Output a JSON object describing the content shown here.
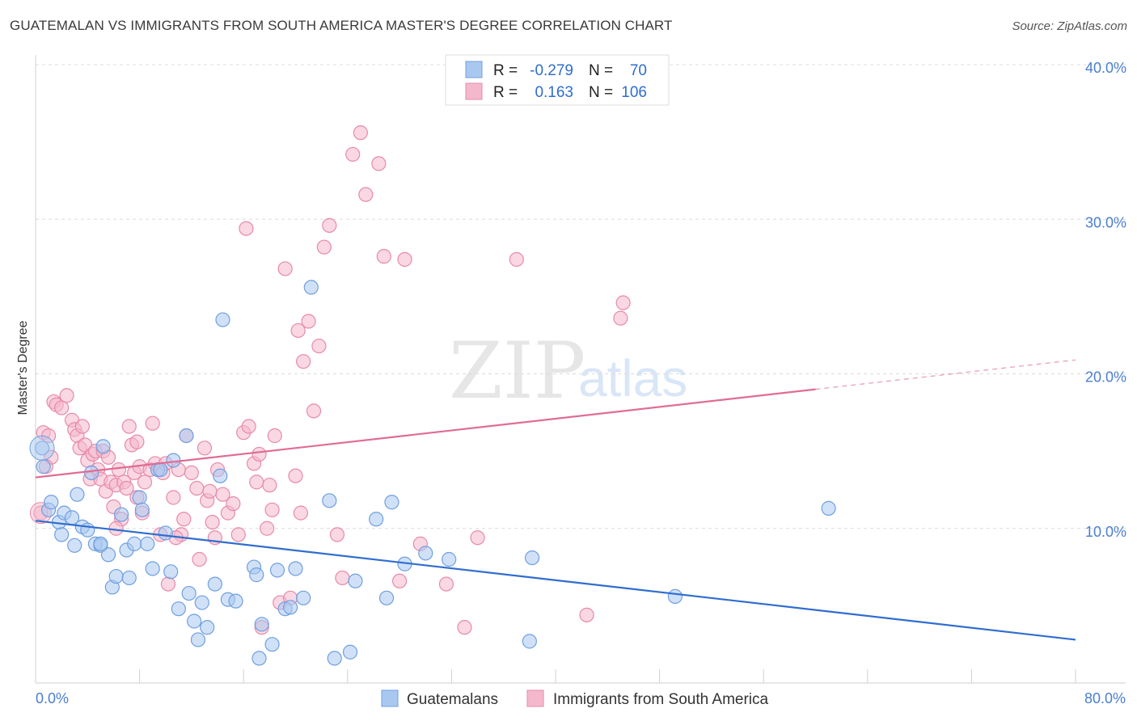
{
  "header": {
    "title": "GUATEMALAN VS IMMIGRANTS FROM SOUTH AMERICA MASTER'S DEGREE CORRELATION CHART",
    "source": "Source: ZipAtlas.com"
  },
  "legend_box": {
    "rows": [
      {
        "r_label": "R = ",
        "r_value": "-0.279",
        "n_label": "N = ",
        "n_value": "70",
        "color": "#a9c8f0"
      },
      {
        "r_label": "R = ",
        "r_value": "0.163",
        "n_label": "N = ",
        "n_value": "106",
        "color": "#f4b8cc"
      }
    ]
  },
  "bottom_legend": {
    "items": [
      {
        "label": "Guatemalans",
        "color": "#a9c8f0"
      },
      {
        "label": "Immigrants from South America",
        "color": "#f4b8cc"
      }
    ]
  },
  "watermark": {
    "zip": "ZIP",
    "atlas": "atlas"
  },
  "chart_data": {
    "type": "scatter",
    "ylabel": "Master's Degree",
    "xlabel": "",
    "xlim": [
      0,
      80
    ],
    "ylim": [
      0,
      40
    ],
    "x_tick_labels": {
      "min": "0.0%",
      "max": "80.0%"
    },
    "y_ticks": [
      10,
      20,
      30,
      40
    ],
    "y_tick_labels": [
      "10.0%",
      "20.0%",
      "30.0%",
      "40.0%"
    ],
    "grid": true,
    "legend_position": "top-center",
    "series": [
      {
        "name": "Guatemalans",
        "color": "#a9c8f0",
        "stroke": "#6f9fe0",
        "trend_color": "#2f6dcf",
        "trend": {
          "x0": 0,
          "y0": 10.5,
          "x1": 80,
          "y1": 2.8
        },
        "points": [
          [
            0.5,
            15.2
          ],
          [
            0.6,
            14.0
          ],
          [
            1.0,
            11.2
          ],
          [
            1.2,
            11.7
          ],
          [
            1.8,
            10.4
          ],
          [
            2.0,
            9.6
          ],
          [
            2.2,
            11.0
          ],
          [
            2.8,
            10.7
          ],
          [
            3.0,
            8.9
          ],
          [
            3.2,
            12.2
          ],
          [
            3.6,
            10.1
          ],
          [
            4.0,
            9.9
          ],
          [
            4.3,
            13.6
          ],
          [
            4.6,
            9.0
          ],
          [
            5.0,
            8.9
          ],
          [
            5.2,
            15.3
          ],
          [
            5.6,
            8.3
          ],
          [
            5.9,
            6.2
          ],
          [
            6.2,
            6.9
          ],
          [
            6.6,
            10.9
          ],
          [
            7.0,
            8.6
          ],
          [
            7.2,
            6.8
          ],
          [
            7.6,
            9.0
          ],
          [
            8.0,
            12.0
          ],
          [
            8.2,
            11.2
          ],
          [
            8.6,
            9.0
          ],
          [
            9.0,
            7.4
          ],
          [
            9.4,
            13.8
          ],
          [
            10.0,
            9.7
          ],
          [
            10.4,
            7.2
          ],
          [
            10.6,
            14.4
          ],
          [
            11.0,
            4.8
          ],
          [
            11.6,
            16.0
          ],
          [
            11.8,
            5.8
          ],
          [
            12.2,
            4.0
          ],
          [
            12.5,
            2.8
          ],
          [
            12.8,
            5.2
          ],
          [
            13.2,
            3.6
          ],
          [
            13.8,
            6.4
          ],
          [
            14.2,
            13.4
          ],
          [
            14.4,
            23.5
          ],
          [
            14.8,
            5.4
          ],
          [
            15.4,
            5.3
          ],
          [
            16.8,
            7.5
          ],
          [
            17.0,
            7.0
          ],
          [
            17.2,
            1.6
          ],
          [
            17.4,
            3.8
          ],
          [
            18.2,
            2.5
          ],
          [
            18.6,
            7.3
          ],
          [
            19.2,
            4.8
          ],
          [
            19.6,
            4.9
          ],
          [
            20.0,
            7.4
          ],
          [
            20.6,
            5.5
          ],
          [
            21.2,
            25.6
          ],
          [
            22.6,
            11.8
          ],
          [
            23.0,
            1.6
          ],
          [
            24.2,
            2.0
          ],
          [
            24.6,
            6.6
          ],
          [
            26.2,
            10.6
          ],
          [
            27.0,
            5.5
          ],
          [
            27.4,
            11.7
          ],
          [
            28.4,
            7.7
          ],
          [
            30.0,
            8.4
          ],
          [
            31.8,
            8.0
          ],
          [
            38.0,
            2.7
          ],
          [
            38.2,
            8.1
          ],
          [
            49.2,
            5.6
          ],
          [
            61.0,
            11.3
          ],
          [
            9.6,
            13.8
          ],
          [
            5.0,
            9.0
          ]
        ]
      },
      {
        "name": "Immigrants from South America",
        "color": "#f4b8cc",
        "stroke": "#e88aa8",
        "trend_color": "#e06c94",
        "trend": {
          "x0": 0,
          "y0": 13.3,
          "x1": 60,
          "y1": 19.0
        },
        "trend_dashed": {
          "x0": 60,
          "y0": 19.0,
          "x1": 80,
          "y1": 20.9
        },
        "points": [
          [
            0.6,
            16.2
          ],
          [
            1.0,
            16.0
          ],
          [
            1.2,
            14.6
          ],
          [
            1.4,
            18.2
          ],
          [
            1.6,
            18.0
          ],
          [
            2.0,
            17.8
          ],
          [
            2.4,
            18.6
          ],
          [
            2.8,
            17.0
          ],
          [
            3.0,
            16.4
          ],
          [
            3.2,
            16.0
          ],
          [
            3.4,
            15.2
          ],
          [
            3.6,
            16.6
          ],
          [
            3.8,
            15.4
          ],
          [
            4.0,
            14.4
          ],
          [
            4.2,
            13.2
          ],
          [
            4.4,
            14.8
          ],
          [
            4.6,
            15.0
          ],
          [
            4.8,
            13.8
          ],
          [
            5.0,
            13.2
          ],
          [
            5.2,
            15.0
          ],
          [
            5.4,
            12.4
          ],
          [
            5.6,
            14.6
          ],
          [
            5.8,
            13.0
          ],
          [
            6.0,
            11.4
          ],
          [
            6.2,
            12.8
          ],
          [
            6.4,
            13.8
          ],
          [
            6.6,
            10.6
          ],
          [
            6.8,
            13.0
          ],
          [
            7.0,
            12.6
          ],
          [
            7.2,
            16.6
          ],
          [
            7.4,
            15.4
          ],
          [
            7.6,
            13.6
          ],
          [
            7.8,
            12.0
          ],
          [
            8.0,
            14.0
          ],
          [
            8.2,
            11.0
          ],
          [
            8.4,
            13.0
          ],
          [
            8.8,
            13.8
          ],
          [
            9.0,
            16.8
          ],
          [
            9.2,
            14.2
          ],
          [
            9.6,
            9.6
          ],
          [
            9.8,
            13.6
          ],
          [
            10.0,
            14.2
          ],
          [
            10.2,
            6.4
          ],
          [
            10.6,
            12.0
          ],
          [
            11.0,
            13.8
          ],
          [
            11.2,
            9.6
          ],
          [
            11.4,
            10.6
          ],
          [
            11.6,
            16.0
          ],
          [
            12.0,
            13.6
          ],
          [
            12.4,
            12.6
          ],
          [
            12.6,
            8.0
          ],
          [
            13.0,
            15.2
          ],
          [
            13.2,
            11.8
          ],
          [
            13.6,
            10.4
          ],
          [
            13.8,
            9.4
          ],
          [
            14.0,
            13.8
          ],
          [
            14.4,
            12.2
          ],
          [
            14.8,
            11.0
          ],
          [
            15.2,
            11.6
          ],
          [
            15.6,
            9.6
          ],
          [
            16.0,
            16.2
          ],
          [
            16.4,
            16.6
          ],
          [
            16.8,
            14.2
          ],
          [
            17.0,
            13.0
          ],
          [
            17.4,
            3.6
          ],
          [
            17.8,
            10.0
          ],
          [
            18.2,
            11.2
          ],
          [
            18.4,
            16.0
          ],
          [
            18.8,
            5.2
          ],
          [
            19.2,
            26.8
          ],
          [
            19.6,
            5.5
          ],
          [
            20.0,
            13.4
          ],
          [
            20.2,
            22.8
          ],
          [
            20.6,
            20.8
          ],
          [
            21.0,
            23.4
          ],
          [
            21.4,
            17.6
          ],
          [
            21.8,
            21.8
          ],
          [
            22.2,
            28.2
          ],
          [
            22.6,
            29.6
          ],
          [
            23.2,
            9.6
          ],
          [
            23.6,
            6.8
          ],
          [
            24.4,
            34.2
          ],
          [
            25.0,
            35.6
          ],
          [
            25.4,
            31.6
          ],
          [
            26.4,
            33.6
          ],
          [
            26.8,
            27.6
          ],
          [
            28.0,
            6.6
          ],
          [
            28.4,
            27.4
          ],
          [
            29.6,
            9.0
          ],
          [
            31.6,
            6.4
          ],
          [
            33.0,
            3.6
          ],
          [
            34.0,
            9.4
          ],
          [
            37.0,
            27.4
          ],
          [
            42.4,
            4.4
          ],
          [
            45.0,
            23.6
          ],
          [
            45.2,
            24.6
          ],
          [
            0.4,
            11.0
          ],
          [
            16.2,
            29.4
          ],
          [
            20.4,
            11.0
          ],
          [
            13.4,
            12.4
          ],
          [
            10.8,
            9.4
          ],
          [
            17.2,
            14.8
          ],
          [
            7.8,
            15.6
          ],
          [
            6.2,
            10.0
          ],
          [
            0.8,
            14.0
          ],
          [
            18.0,
            12.8
          ]
        ]
      }
    ]
  }
}
